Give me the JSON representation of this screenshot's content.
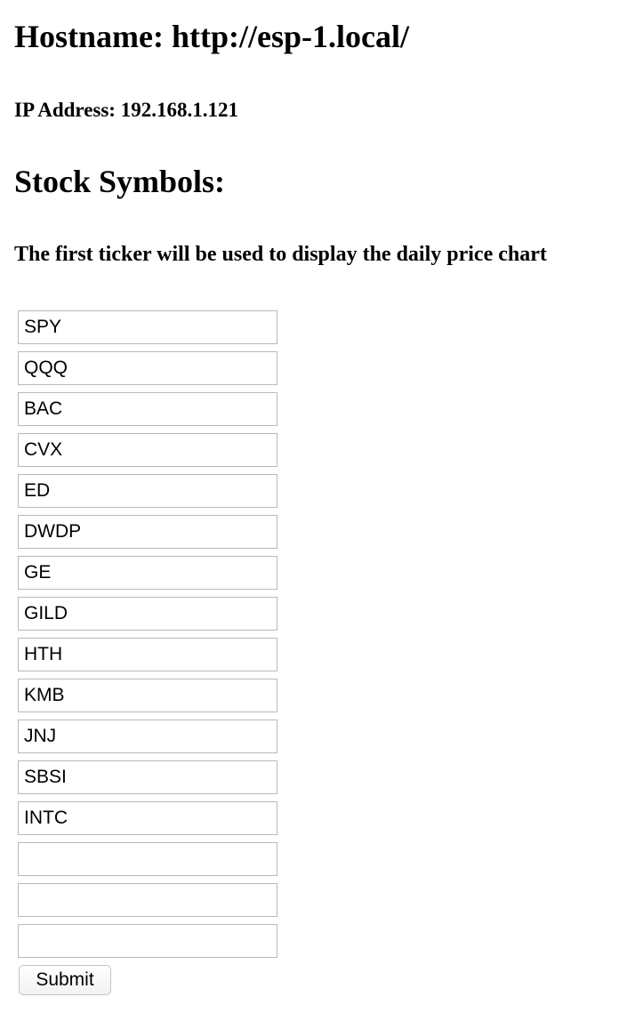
{
  "header": {
    "hostname": "Hostname: http://esp-1.local/",
    "ip": "IP Address: 192.168.1.121"
  },
  "stocks": {
    "title": "Stock Symbols:",
    "note": "The first ticker will be used to display the daily price chart",
    "tickers": [
      "SPY",
      "QQQ",
      "BAC",
      "CVX",
      "ED",
      "DWDP",
      "GE",
      "GILD",
      "HTH",
      "KMB",
      "JNJ",
      "SBSI",
      "INTC",
      "",
      "",
      ""
    ],
    "submit_label": "Submit"
  }
}
